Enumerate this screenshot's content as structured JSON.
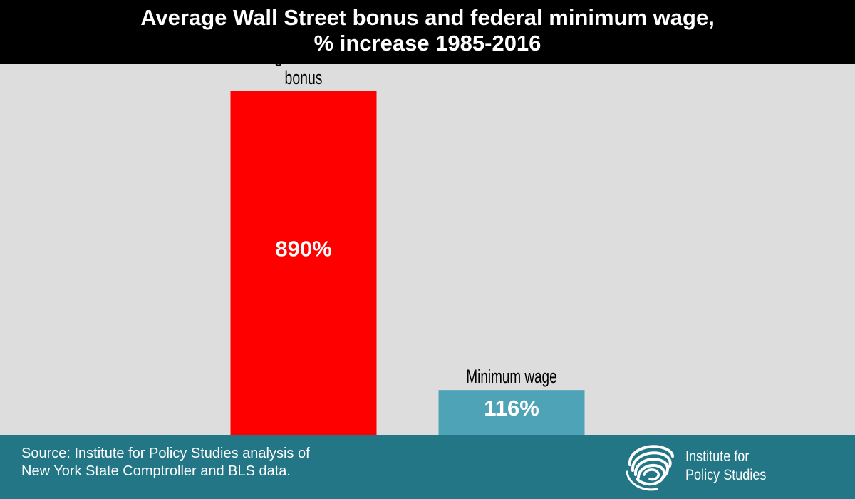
{
  "header": {
    "title_line1": "Average Wall Street bonus and federal minimum wage,",
    "title_line2": "% increase 1985-2016"
  },
  "chart_data": {
    "type": "bar",
    "title": "Average Wall Street bonus and federal minimum wage, % increase 1985-2016",
    "categories": [
      "Average Wall Street bonus",
      "Minimum wage"
    ],
    "category_lines": [
      [
        "Average Wall Street",
        "bonus"
      ],
      [
        "Minimum wage"
      ]
    ],
    "values": [
      890,
      116
    ],
    "value_labels": [
      "890%",
      "116%"
    ],
    "colors": [
      "#ff0000",
      "#4fa3b6"
    ],
    "xlabel": "",
    "ylabel": "",
    "ylim": [
      0,
      960
    ],
    "grid": false,
    "legend": "none"
  },
  "footer": {
    "source_line1": "Source: Institute for Policy Studies analysis of",
    "source_line2": "New York State Comptroller and BLS data.",
    "org_line1": "Institute for",
    "org_line2": "Policy Studies",
    "logo_icon": "swirl-logo-icon"
  },
  "colors": {
    "background": "#dddddd",
    "title_bar": "#000000",
    "footer_bar": "#237686",
    "text_light": "#ffffff"
  }
}
